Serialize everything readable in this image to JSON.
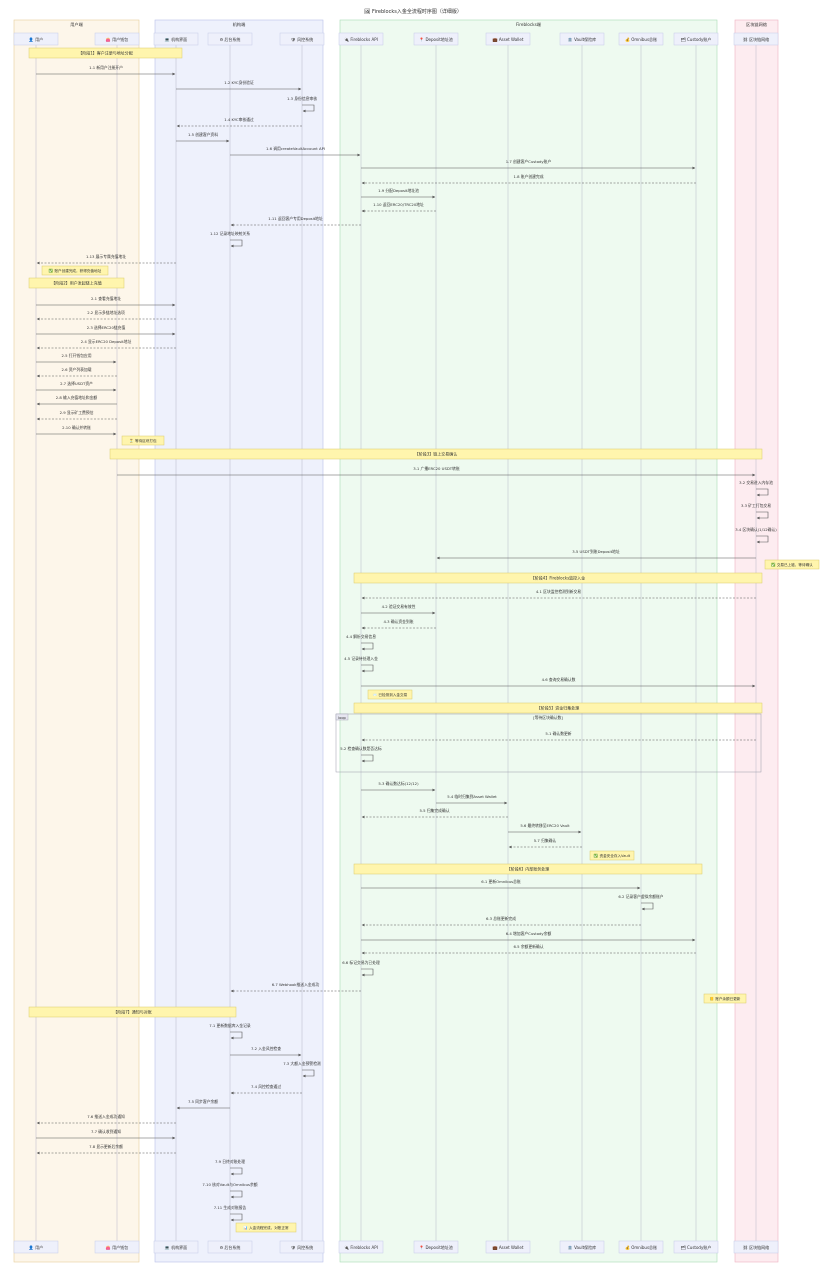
{
  "title": "🖼 Fireblocks入金全流程时序图（详细版）",
  "colors": {
    "user_group": "#fdf6ea",
    "org_group": "#eef1fc",
    "fireblocks_group": "#eefaf0",
    "chain_group": "#fdecf0",
    "box_bg": "#eef0fb",
    "note_bg": "#fff5ad",
    "note_border": "#d9cb6a",
    "line": "#555555",
    "lifeline": "#b8b8c8"
  },
  "groups": [
    {
      "label": "用户端"
    },
    {
      "label": "机构端"
    },
    {
      "label": "Fireblocks端"
    },
    {
      "label": "区块链网络"
    }
  ],
  "participants": [
    {
      "label": "👤 用户"
    },
    {
      "label": "👛 用户钱包"
    },
    {
      "label": "💻 机构界面"
    },
    {
      "label": "⚙ 后台系统"
    },
    {
      "label": "🛡 风控系统"
    },
    {
      "label": "🔌 Fireblocks API"
    },
    {
      "label": "📍 Deposit地址池"
    },
    {
      "label": "💼 Asset Wallet"
    },
    {
      "label": "🏦 Vault保险库"
    },
    {
      "label": "💰 Omnibus总账"
    },
    {
      "label": "🗂 Custody账户"
    },
    {
      "label": "⛓ 区块链网络"
    }
  ],
  "phases": [
    {
      "label": "【阶段1】客户注册与地址分配"
    },
    {
      "label": "【阶段2】用户发起链上充值"
    },
    {
      "label": "【阶段3】链上交易确认"
    },
    {
      "label": "【阶段4】Fireblocks监控入金"
    },
    {
      "label": "【阶段5】资金归集处理"
    },
    {
      "label": "【阶段6】内部账务处理"
    },
    {
      "label": "【阶段7】通知与对账"
    }
  ],
  "notes": [
    {
      "label": "✅ 账户创建完成，获得充值地址"
    },
    {
      "label": "⏳ 等待区块打包"
    },
    {
      "label": "✅ 交易已上链，等待确认"
    },
    {
      "label": "📨 已检测到入金交易"
    },
    {
      "label": "✅ 资金安全存入Vault"
    },
    {
      "label": "📒 账户余额已更新"
    },
    {
      "label": "📊 入金流程完成，对账正常"
    }
  ],
  "loop": {
    "tag": "loop",
    "label": "[等待区块确认数]"
  },
  "messages": [
    {
      "label": "1.1 新用户注册开户"
    },
    {
      "label": "1.2 KYC身份验证"
    },
    {
      "label": "1.3 身份信息审核"
    },
    {
      "label": "1.4 KYC审核通过"
    },
    {
      "label": "1.5 创建客户资料"
    },
    {
      "label": "1.6 调用createVaultAccount API"
    },
    {
      "label": "1.7 创建客户Custody账户"
    },
    {
      "label": "1.8 账户创建完成"
    },
    {
      "label": "1.9 分配Deposit地址池"
    },
    {
      "label": "1.10 返回ERC20/TRC20地址"
    },
    {
      "label": "1.11 返回客户专用Deposit地址"
    },
    {
      "label": "1.12 记录地址映射关系"
    },
    {
      "label": "1.13 展示专属充值地址"
    },
    {
      "label": "2.1 查看充值地址"
    },
    {
      "label": "2.2 显示多链地址选项"
    },
    {
      "label": "2.3 选择ERC20链充值"
    },
    {
      "label": "2.4 显示ERC20 Deposit地址"
    },
    {
      "label": "2.5 打开钱包应用"
    },
    {
      "label": "2.6 资产列表加载"
    },
    {
      "label": "2.7 选择USDT资产"
    },
    {
      "label": "2.8 输入充值地址和金额"
    },
    {
      "label": "2.9 显示矿工费预估"
    },
    {
      "label": "2.10 确认并转账"
    },
    {
      "label": "3.1 广播ERC20 USDT转账"
    },
    {
      "label": "3.2 交易进入内存池"
    },
    {
      "label": "3.3 矿工打包交易"
    },
    {
      "label": "3.4 区块确认(1/12确认)"
    },
    {
      "label": "3.5 USDT到账Deposit地址"
    },
    {
      "label": "4.1 区块监控检测到新交易"
    },
    {
      "label": "4.2 验证交易有效性"
    },
    {
      "label": "4.3 确认资金到账"
    },
    {
      "label": "4.4 解析交易信息"
    },
    {
      "label": "4.5 记录待处理入金"
    },
    {
      "label": "4.6 查询交易确认数"
    },
    {
      "label": "5.1 确认数更新"
    },
    {
      "label": "5.2 检查确认数是否达标"
    },
    {
      "label": "5.3 确认数达标(12/12)"
    },
    {
      "label": "5.4 临时归集到Asset Wallet"
    },
    {
      "label": "5.5 归集完成确认"
    },
    {
      "label": "5.6 最终转移至ERC20 Vault"
    },
    {
      "label": "5.7 归集确认"
    },
    {
      "label": "6.1 更新Omnibus总账"
    },
    {
      "label": "6.2 记录客户虚拟余额账户"
    },
    {
      "label": "6.3 总账更新完成"
    },
    {
      "label": "6.4 增加客户Custody余额"
    },
    {
      "label": "6.5 余额更新确认"
    },
    {
      "label": "6.6 标记交易为已处理"
    },
    {
      "label": "6.7 Webhook推送入金成功"
    },
    {
      "label": "7.1 更新数据库入金记录"
    },
    {
      "label": "7.2 入金风控检查"
    },
    {
      "label": "7.3 大额入金预警检测"
    },
    {
      "label": "7.4 风控检查通过"
    },
    {
      "label": "7.5 同步客户余额"
    },
    {
      "label": "7.6 推送入金成功通知"
    },
    {
      "label": "7.7 确认收到通知"
    },
    {
      "label": "7.8 显示更新后余额"
    },
    {
      "label": "7.9 日终对账处理"
    },
    {
      "label": "7.10 核对Vault与Omnibus余额"
    },
    {
      "label": "7.11 生成对账报告"
    }
  ]
}
